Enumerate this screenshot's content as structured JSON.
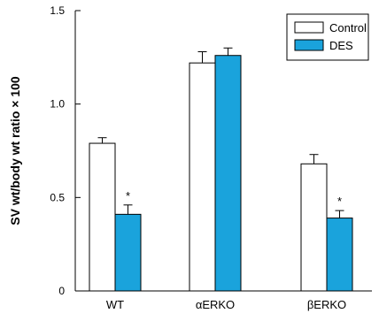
{
  "chart_data": {
    "type": "bar",
    "title": "",
    "xlabel": "",
    "ylabel": "SV wt/body wt ratio × 100",
    "ylim": [
      0,
      1.5
    ],
    "yticks": [
      "0",
      "0.5",
      "1.0",
      "1.5"
    ],
    "ytick_values": [
      0,
      0.5,
      1.0,
      1.5
    ],
    "categories": [
      "WT",
      "αERKO",
      "βERKO"
    ],
    "series": [
      {
        "name": "Control",
        "color": "#ffffff",
        "values": [
          0.79,
          1.22,
          0.68
        ],
        "errors": [
          0.03,
          0.06,
          0.05
        ]
      },
      {
        "name": "DES",
        "color": "#1aa3dc",
        "values": [
          0.41,
          1.26,
          0.39
        ],
        "errors": [
          0.05,
          0.04,
          0.04
        ]
      }
    ],
    "annotations": [
      {
        "category": 0,
        "series": 1,
        "text": "*"
      },
      {
        "category": 2,
        "series": 1,
        "text": "*"
      }
    ],
    "legend_position": "top-right",
    "grid": false
  }
}
